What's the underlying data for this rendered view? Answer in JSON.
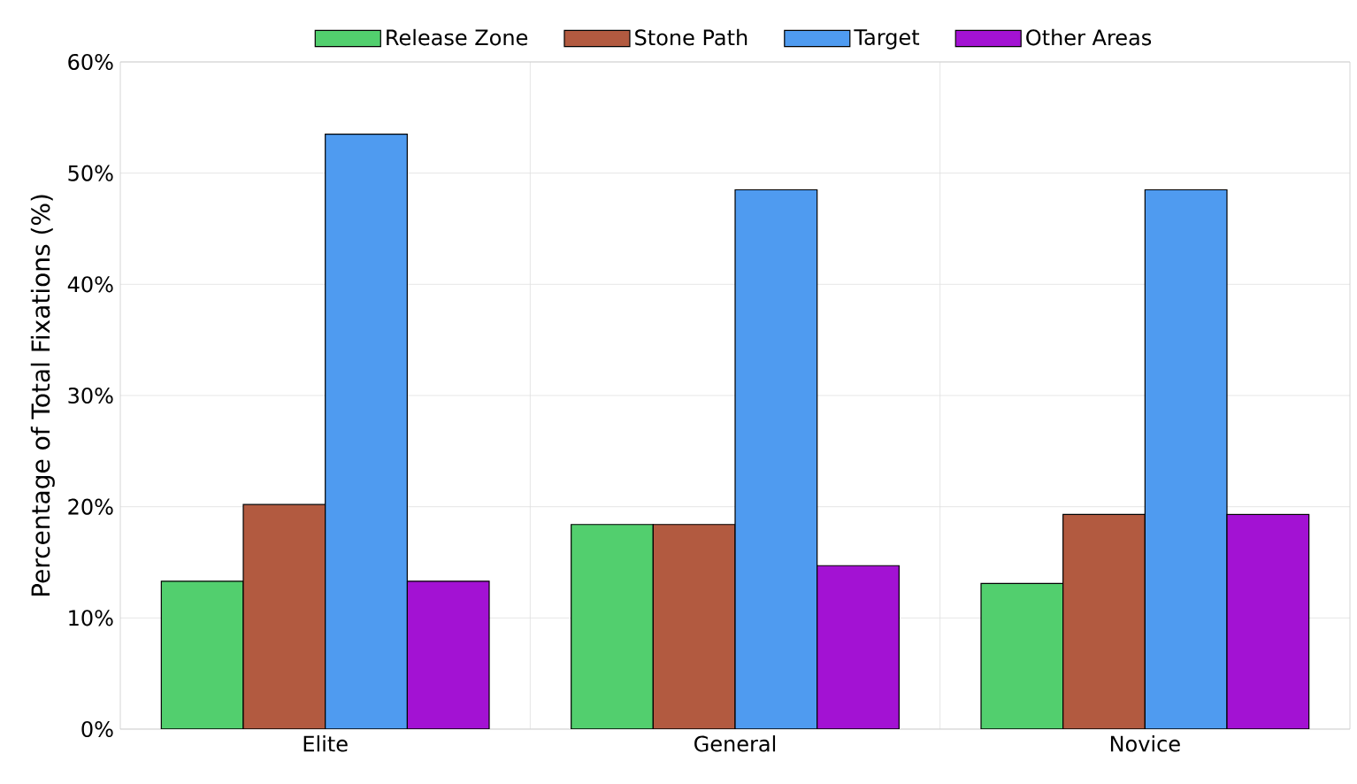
{
  "chart_data": {
    "type": "bar",
    "ylabel": "Percentage of Total Fixations (%)",
    "categories": [
      "Elite",
      "General",
      "Novice"
    ],
    "series": [
      {
        "name": "Release Zone",
        "color": "#52cf6e",
        "values": [
          13.3,
          18.4,
          13.1
        ]
      },
      {
        "name": "Stone Path",
        "color": "#b25a40",
        "values": [
          20.2,
          18.4,
          19.3
        ]
      },
      {
        "name": "Target",
        "color": "#4f9bf0",
        "values": [
          53.5,
          48.5,
          48.5
        ]
      },
      {
        "name": "Other Areas",
        "color": "#a312d3",
        "values": [
          13.3,
          14.7,
          19.3
        ]
      }
    ],
    "ylim": [
      0,
      60
    ],
    "yticks": [
      {
        "value": 0,
        "label": "0%"
      },
      {
        "value": 10,
        "label": "10%"
      },
      {
        "value": 20,
        "label": "20%"
      },
      {
        "value": 30,
        "label": "30%"
      },
      {
        "value": 40,
        "label": "40%"
      },
      {
        "value": 50,
        "label": "50%"
      },
      {
        "value": 60,
        "label": "60%"
      }
    ],
    "grid": true,
    "legend": "top"
  }
}
